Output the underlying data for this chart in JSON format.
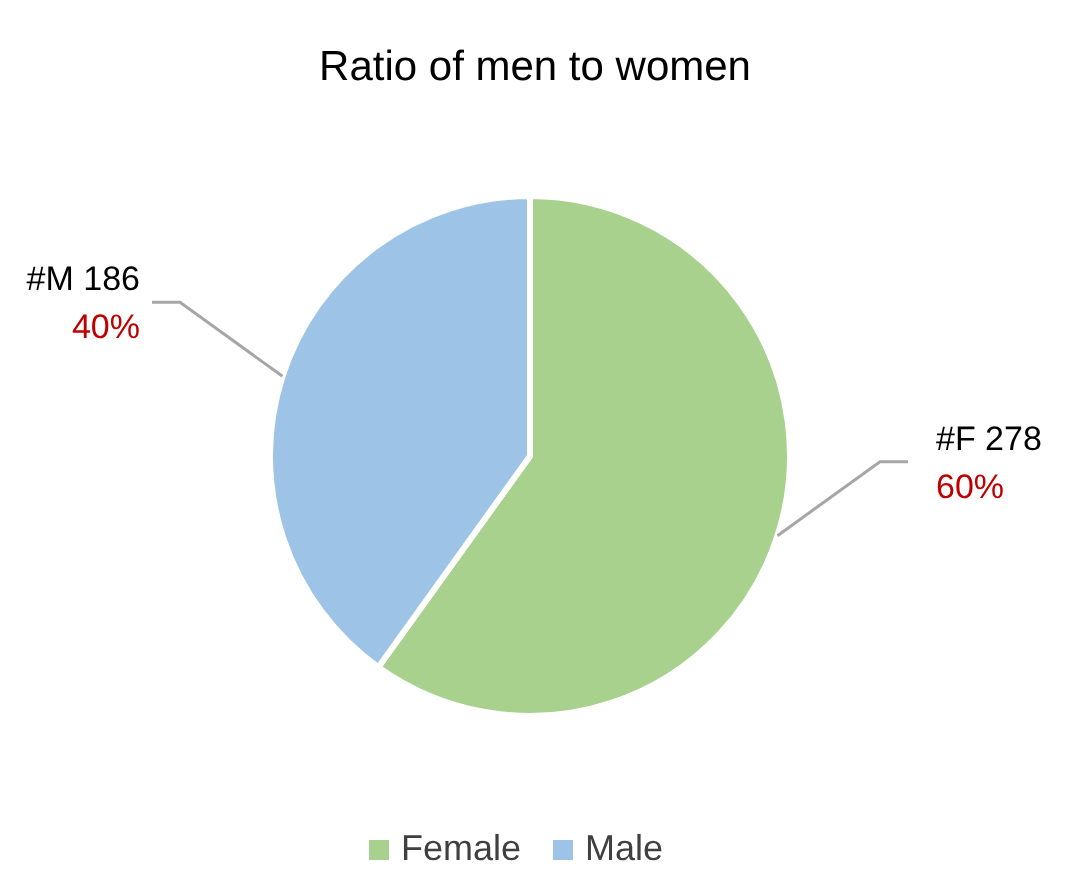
{
  "chart_data": {
    "type": "pie",
    "title": "Ratio of men to women",
    "categories": [
      "Female",
      "Male"
    ],
    "values": [
      278,
      186
    ],
    "colors": [
      "#a9d18e",
      "#9dc3e6"
    ],
    "value_labels": [
      "#F 278\n60%",
      "#M 186\n40%"
    ],
    "legend": "bottom"
  }
}
